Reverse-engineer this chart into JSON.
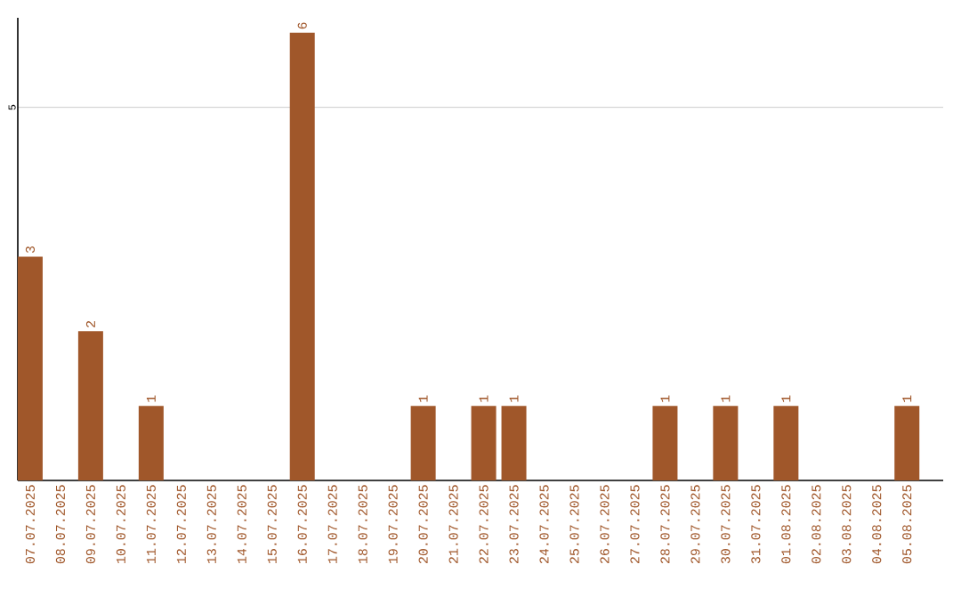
{
  "chart_data": {
    "type": "bar",
    "categories": [
      "07.07.2025",
      "08.07.2025",
      "09.07.2025",
      "10.07.2025",
      "11.07.2025",
      "12.07.2025",
      "13.07.2025",
      "14.07.2025",
      "15.07.2025",
      "16.07.2025",
      "17.07.2025",
      "18.07.2025",
      "19.07.2025",
      "20.07.2025",
      "21.07.2025",
      "22.07.2025",
      "23.07.2025",
      "24.07.2025",
      "25.07.2025",
      "26.07.2025",
      "27.07.2025",
      "28.07.2025",
      "29.07.2025",
      "30.07.2025",
      "31.07.2025",
      "01.08.2025",
      "02.08.2025",
      "03.08.2025",
      "04.08.2025",
      "05.08.2025"
    ],
    "values": [
      3,
      0,
      2,
      0,
      1,
      0,
      0,
      0,
      0,
      6,
      0,
      0,
      0,
      1,
      0,
      1,
      1,
      0,
      0,
      0,
      0,
      1,
      0,
      1,
      0,
      1,
      0,
      0,
      0,
      1
    ],
    "value_labels": [
      "3",
      null,
      "2",
      null,
      "1",
      null,
      null,
      null,
      null,
      "6",
      null,
      null,
      null,
      "1",
      null,
      "1",
      "1",
      null,
      null,
      null,
      null,
      "1",
      null,
      "1",
      null,
      "1",
      null,
      null,
      null,
      "1"
    ],
    "color": "#a0572a",
    "ylim": [
      0,
      6.2
    ],
    "yticks": [
      5
    ],
    "grid": "y"
  }
}
